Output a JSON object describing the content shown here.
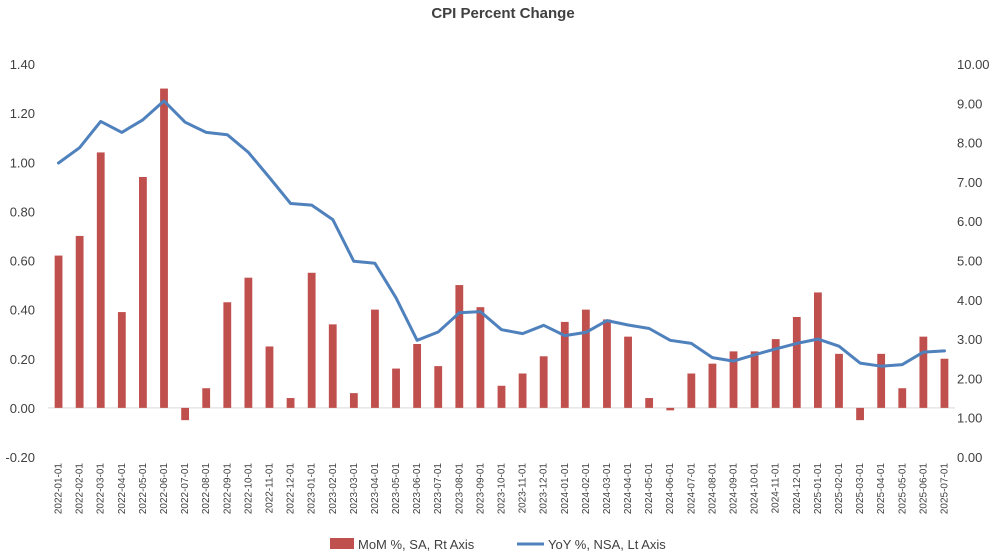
{
  "chart_data": {
    "type": "bar+line",
    "title": "CPI Percent Change",
    "categories": [
      "2022-01-01",
      "2022-02-01",
      "2022-03-01",
      "2022-04-01",
      "2022-05-01",
      "2022-06-01",
      "2022-07-01",
      "2022-08-01",
      "2022-09-01",
      "2022-10-01",
      "2022-11-01",
      "2022-12-01",
      "2023-01-01",
      "2023-02-01",
      "2023-03-01",
      "2023-04-01",
      "2023-05-01",
      "2023-06-01",
      "2023-07-01",
      "2023-08-01",
      "2023-09-01",
      "2023-10-01",
      "2023-11-01",
      "2023-12-01",
      "2024-01-01",
      "2024-02-01",
      "2024-03-01",
      "2024-04-01",
      "2024-05-01",
      "2024-06-01",
      "2024-07-01",
      "2024-08-01",
      "2024-09-01",
      "2024-10-01",
      "2024-11-01",
      "2024-12-01",
      "2025-01-01",
      "2025-02-01",
      "2025-03-01",
      "2025-04-01",
      "2025-05-01",
      "2025-06-01",
      "2025-07-01"
    ],
    "series": [
      {
        "name": "MoM %, SA, Rt Axis",
        "type": "bar",
        "axis": "left",
        "color": "#c0504d",
        "values": [
          0.62,
          0.7,
          1.04,
          0.39,
          0.94,
          1.3,
          -0.05,
          0.08,
          0.43,
          0.53,
          0.25,
          0.04,
          0.55,
          0.34,
          0.06,
          0.4,
          0.16,
          0.26,
          0.17,
          0.5,
          0.41,
          0.09,
          0.14,
          0.21,
          0.35,
          0.4,
          0.36,
          0.29,
          0.04,
          -0.01,
          0.14,
          0.18,
          0.23,
          0.23,
          0.28,
          0.37,
          0.47,
          0.22,
          -0.05,
          0.22,
          0.08,
          0.29,
          0.2
        ]
      },
      {
        "name": "YoY %, NSA, Lt Axis",
        "type": "line",
        "axis": "right",
        "color": "#4f81bd",
        "values": [
          7.48,
          7.87,
          8.54,
          8.26,
          8.58,
          9.06,
          8.52,
          8.26,
          8.2,
          7.75,
          7.11,
          6.45,
          6.41,
          6.04,
          4.98,
          4.93,
          4.05,
          2.97,
          3.18,
          3.67,
          3.7,
          3.24,
          3.14,
          3.35,
          3.09,
          3.17,
          3.47,
          3.36,
          3.27,
          2.97,
          2.89,
          2.53,
          2.44,
          2.6,
          2.75,
          2.89,
          3.0,
          2.82,
          2.39,
          2.31,
          2.35,
          2.67,
          2.7
        ]
      }
    ],
    "y_left": {
      "min": -0.2,
      "max": 1.4,
      "step": 0.2,
      "tick_labels": [
        "-0.20",
        "0.00",
        "0.20",
        "0.40",
        "0.60",
        "0.80",
        "1.00",
        "1.20",
        "1.40"
      ]
    },
    "y_right": {
      "min": 0,
      "max": 10,
      "step": 1,
      "tick_labels": [
        "0.00",
        "1.00",
        "2.00",
        "3.00",
        "4.00",
        "5.00",
        "6.00",
        "7.00",
        "8.00",
        "9.00",
        "10.00"
      ]
    },
    "grid": false,
    "legend": "bottom"
  }
}
